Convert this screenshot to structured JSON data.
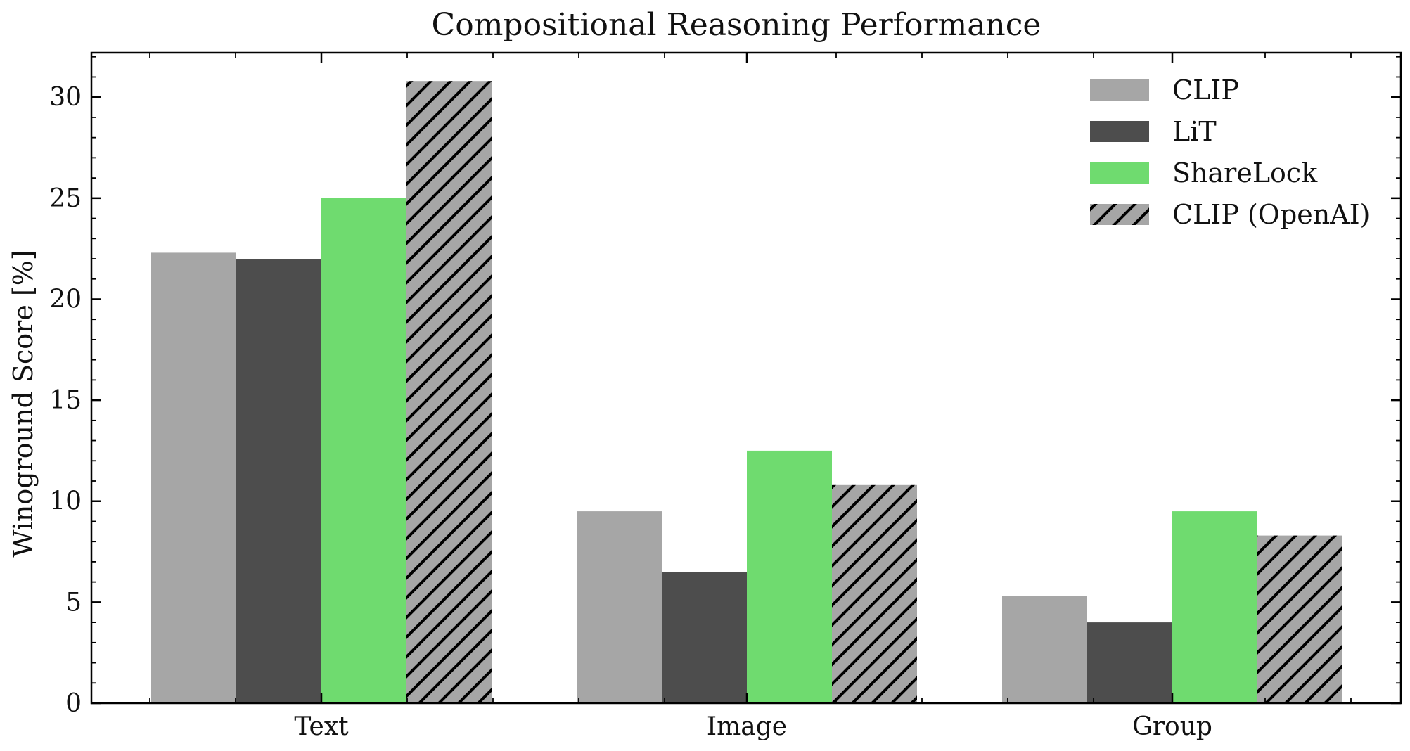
{
  "chart_data": {
    "type": "bar",
    "title": "Compositional Reasoning Performance",
    "xlabel": "",
    "ylabel": "Winoground Score [%]",
    "categories": [
      "Text",
      "Image",
      "Group"
    ],
    "ylim": [
      0,
      32.2
    ],
    "yticks": [
      0,
      5,
      10,
      15,
      20,
      25,
      30
    ],
    "grid": false,
    "legend_position": "top-right",
    "series": [
      {
        "name": "CLIP",
        "color": "#a6a6a6",
        "hatch": false,
        "values": [
          22.3,
          9.5,
          5.3
        ]
      },
      {
        "name": "LiT",
        "color": "#4d4d4d",
        "hatch": false,
        "values": [
          22.0,
          6.5,
          4.0
        ]
      },
      {
        "name": "ShareLock",
        "color": "#6fdb6f",
        "hatch": false,
        "values": [
          25.0,
          12.5,
          9.5
        ]
      },
      {
        "name": "CLIP (OpenAI)",
        "color": "#a6a6a6",
        "hatch": true,
        "values": [
          30.8,
          10.8,
          8.3
        ]
      }
    ]
  }
}
